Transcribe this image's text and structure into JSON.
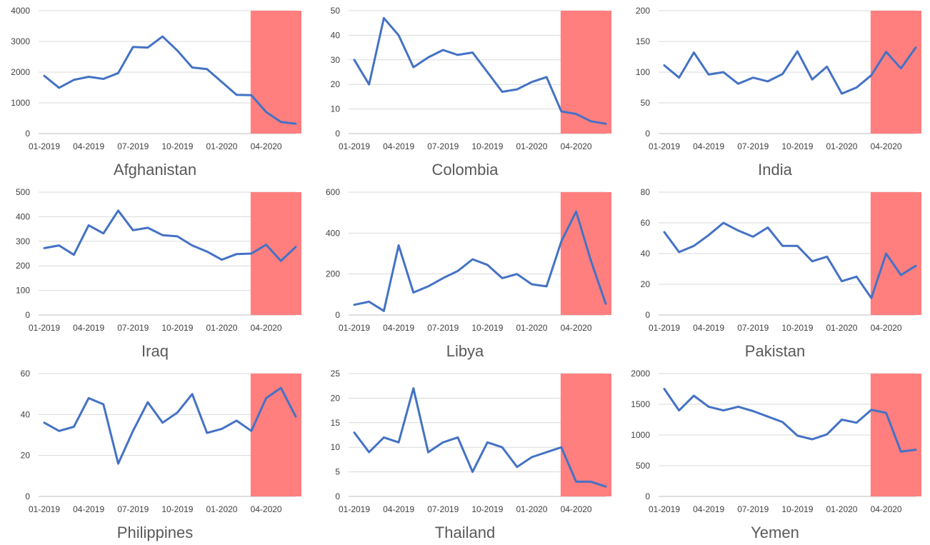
{
  "colors": {
    "line": "#4472c4",
    "highlight": "#ff7f7f",
    "gridline": "#d9d9d9",
    "axis": "#bfbfbf",
    "label": "#595959"
  },
  "highlight_range": [
    "03-2020",
    "06-2020"
  ],
  "chart_data": [
    {
      "type": "line",
      "title": "Afghanistan",
      "x": [
        "01-2019",
        "02-2019",
        "03-2019",
        "04-2019",
        "05-2019",
        "06-2019",
        "07-2019",
        "08-2019",
        "09-2019",
        "10-2019",
        "11-2019",
        "12-2019",
        "01-2020",
        "02-2020",
        "03-2020",
        "04-2020",
        "05-2020",
        "06-2020"
      ],
      "values": [
        1880,
        1490,
        1750,
        1850,
        1780,
        1970,
        2820,
        2800,
        3160,
        2700,
        2150,
        2100,
        1680,
        1260,
        1250,
        700,
        380,
        320
      ],
      "xticks": [
        "01-2019",
        "04-2019",
        "07-2019",
        "10-2019",
        "01-2020",
        "04-2020"
      ],
      "yticks": [
        0,
        1000,
        2000,
        3000,
        4000
      ],
      "ylim": [
        0,
        4000
      ]
    },
    {
      "type": "line",
      "title": "Colombia",
      "x": [
        "01-2019",
        "02-2019",
        "03-2019",
        "04-2019",
        "05-2019",
        "06-2019",
        "07-2019",
        "08-2019",
        "09-2019",
        "10-2019",
        "11-2019",
        "12-2019",
        "01-2020",
        "02-2020",
        "03-2020",
        "04-2020",
        "05-2020",
        "06-2020"
      ],
      "values": [
        30,
        20,
        47,
        40,
        27,
        31,
        34,
        32,
        33,
        25,
        17,
        18,
        21,
        23,
        9,
        8,
        5,
        4
      ],
      "xticks": [
        "01-2019",
        "04-2019",
        "07-2019",
        "10-2019",
        "01-2020",
        "04-2020"
      ],
      "yticks": [
        0,
        10,
        20,
        30,
        40,
        50
      ],
      "ylim": [
        0,
        50
      ]
    },
    {
      "type": "line",
      "title": "India",
      "x": [
        "01-2019",
        "02-2019",
        "03-2019",
        "04-2019",
        "05-2019",
        "06-2019",
        "07-2019",
        "08-2019",
        "09-2019",
        "10-2019",
        "11-2019",
        "12-2019",
        "01-2020",
        "02-2020",
        "03-2020",
        "04-2020",
        "05-2020",
        "06-2020"
      ],
      "values": [
        111,
        91,
        132,
        96,
        100,
        81,
        91,
        85,
        97,
        134,
        88,
        109,
        65,
        75,
        95,
        133,
        106,
        140
      ],
      "xticks": [
        "01-2019",
        "04-2019",
        "07-2019",
        "10-2019",
        "01-2020",
        "04-2020"
      ],
      "yticks": [
        0,
        50,
        100,
        150,
        200
      ],
      "ylim": [
        0,
        200
      ]
    },
    {
      "type": "line",
      "title": "Iraq",
      "x": [
        "01-2019",
        "02-2019",
        "03-2019",
        "04-2019",
        "05-2019",
        "06-2019",
        "07-2019",
        "08-2019",
        "09-2019",
        "10-2019",
        "11-2019",
        "12-2019",
        "01-2020",
        "02-2020",
        "03-2020",
        "04-2020",
        "05-2020",
        "06-2020"
      ],
      "values": [
        272,
        283,
        245,
        365,
        332,
        425,
        345,
        355,
        325,
        320,
        283,
        258,
        225,
        248,
        250,
        286,
        220,
        277
      ],
      "xticks": [
        "01-2019",
        "04-2019",
        "07-2019",
        "10-2019",
        "01-2020",
        "04-2020"
      ],
      "yticks": [
        0,
        100,
        200,
        300,
        400,
        500
      ],
      "ylim": [
        0,
        500
      ]
    },
    {
      "type": "line",
      "title": "Libya",
      "x": [
        "01-2019",
        "02-2019",
        "03-2019",
        "04-2019",
        "05-2019",
        "06-2019",
        "07-2019",
        "08-2019",
        "09-2019",
        "10-2019",
        "11-2019",
        "12-2019",
        "01-2020",
        "02-2020",
        "03-2020",
        "04-2020",
        "05-2020",
        "06-2020"
      ],
      "values": [
        50,
        65,
        20,
        340,
        110,
        140,
        180,
        215,
        272,
        245,
        180,
        200,
        150,
        140,
        360,
        505,
        265,
        55
      ],
      "xticks": [
        "01-2019",
        "04-2019",
        "07-2019",
        "10-2019",
        "01-2020",
        "04-2020"
      ],
      "yticks": [
        0,
        200,
        400,
        600
      ],
      "ylim": [
        0,
        600
      ]
    },
    {
      "type": "line",
      "title": "Pakistan",
      "x": [
        "01-2019",
        "02-2019",
        "03-2019",
        "04-2019",
        "05-2019",
        "06-2019",
        "07-2019",
        "08-2019",
        "09-2019",
        "10-2019",
        "11-2019",
        "12-2019",
        "01-2020",
        "02-2020",
        "03-2020",
        "04-2020",
        "05-2020",
        "06-2020"
      ],
      "values": [
        54,
        41,
        45,
        52,
        60,
        55,
        51,
        57,
        45,
        45,
        35,
        38,
        22,
        25,
        11,
        40,
        26,
        32
      ],
      "xticks": [
        "01-2019",
        "04-2019",
        "07-2019",
        "10-2019",
        "01-2020",
        "04-2020"
      ],
      "yticks": [
        0,
        20,
        40,
        60,
        80
      ],
      "ylim": [
        0,
        80
      ]
    },
    {
      "type": "line",
      "title": "Philippines",
      "x": [
        "01-2019",
        "02-2019",
        "03-2019",
        "04-2019",
        "05-2019",
        "06-2019",
        "07-2019",
        "08-2019",
        "09-2019",
        "10-2019",
        "11-2019",
        "12-2019",
        "01-2020",
        "02-2020",
        "03-2020",
        "04-2020",
        "05-2020",
        "06-2020"
      ],
      "values": [
        36,
        32,
        34,
        48,
        45,
        16,
        32,
        46,
        36,
        41,
        50,
        31,
        33,
        37,
        32,
        48,
        53,
        39
      ],
      "xticks": [
        "01-2019",
        "04-2019",
        "07-2019",
        "10-2019",
        "01-2020",
        "04-2020"
      ],
      "yticks": [
        0,
        20,
        40,
        60
      ],
      "ylim": [
        0,
        60
      ]
    },
    {
      "type": "line",
      "title": "Thailand",
      "x": [
        "01-2019",
        "02-2019",
        "03-2019",
        "04-2019",
        "05-2019",
        "06-2019",
        "07-2019",
        "08-2019",
        "09-2019",
        "10-2019",
        "11-2019",
        "12-2019",
        "01-2020",
        "02-2020",
        "03-2020",
        "04-2020",
        "05-2020",
        "06-2020"
      ],
      "values": [
        13,
        9,
        12,
        11,
        22,
        9,
        11,
        12,
        5,
        11,
        10,
        6,
        8,
        9,
        10,
        3,
        3,
        2
      ],
      "xticks": [
        "01-2019",
        "04-2019",
        "07-2019",
        "10-2019",
        "01-2020",
        "04-2020"
      ],
      "yticks": [
        0,
        5,
        10,
        15,
        20,
        25
      ],
      "ylim": [
        0,
        25
      ]
    },
    {
      "type": "line",
      "title": "Yemen",
      "x": [
        "01-2019",
        "02-2019",
        "03-2019",
        "04-2019",
        "05-2019",
        "06-2019",
        "07-2019",
        "08-2019",
        "09-2019",
        "10-2019",
        "11-2019",
        "12-2019",
        "01-2020",
        "02-2020",
        "03-2020",
        "04-2020",
        "05-2020",
        "06-2020"
      ],
      "values": [
        1750,
        1400,
        1640,
        1460,
        1400,
        1460,
        1390,
        1300,
        1210,
        990,
        930,
        1010,
        1250,
        1200,
        1410,
        1360,
        730,
        760
      ],
      "xticks": [
        "01-2019",
        "04-2019",
        "07-2019",
        "10-2019",
        "01-2020",
        "04-2020"
      ],
      "yticks": [
        0,
        500,
        1000,
        1500,
        2000
      ],
      "ylim": [
        0,
        2000
      ]
    }
  ]
}
